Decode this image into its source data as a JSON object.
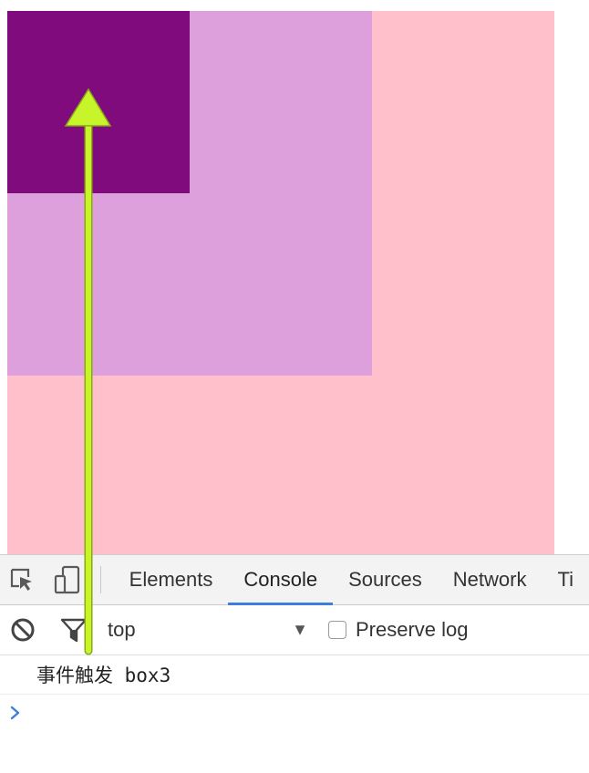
{
  "page": {
    "box_colors": {
      "box1": "#ffc0cb",
      "box2": "#dda0dd",
      "box3": "#800b7c"
    }
  },
  "devtools": {
    "toolbar_icons": [
      "inspect-element-icon",
      "device-toggle-icon"
    ],
    "tabs": [
      {
        "label": "Elements",
        "active": false
      },
      {
        "label": "Console",
        "active": true
      },
      {
        "label": "Sources",
        "active": false
      },
      {
        "label": "Network",
        "active": false
      },
      {
        "label": "Ti",
        "active": false
      }
    ],
    "console_toolbar": {
      "icons": [
        "clear-console-icon",
        "filter-icon"
      ],
      "context": "top",
      "preserve_log_label": "Preserve log",
      "preserve_log_checked": false
    },
    "messages": [
      {
        "text": "事件触发 box3"
      }
    ],
    "prompt_icon": "chevron-right-icon",
    "accent_color": "#3b7ee0"
  },
  "annotation": {
    "arrow_color": "#c8f52a",
    "arrow_icon": "arrow-up-icon"
  }
}
